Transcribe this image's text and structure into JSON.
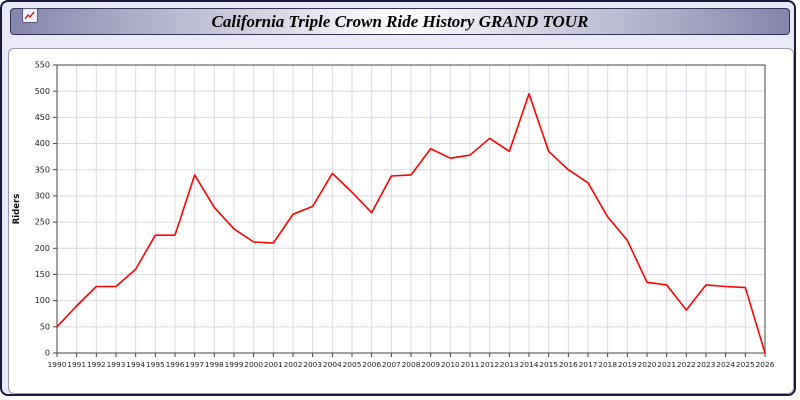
{
  "header": {
    "title": "California Triple Crown Ride History GRAND TOUR",
    "icon": "mini-chart-icon"
  },
  "chart_data": {
    "type": "line",
    "title": "California Triple Crown Ride History GRAND TOUR",
    "xlabel": "",
    "ylabel": "Riders",
    "ylim": [
      0,
      550
    ],
    "ytick_step": 50,
    "grid": true,
    "legend_position": "none",
    "line_color": "#ff0000",
    "x": [
      "1990",
      "1991",
      "1992",
      "1993",
      "1994",
      "1995",
      "1996",
      "1997",
      "1998",
      "1999",
      "2000",
      "2001",
      "2002",
      "2003",
      "2004",
      "2005",
      "2006",
      "2007",
      "2008",
      "2009",
      "2010",
      "2011",
      "2012",
      "2013",
      "2014",
      "2015",
      "2016",
      "2017",
      "2018",
      "2019",
      "2020",
      "2021",
      "2022",
      "2023",
      "2024",
      "2025",
      "2026"
    ],
    "series": [
      {
        "name": "Riders",
        "values": [
          50,
          90,
          127,
          127,
          160,
          225,
          225,
          340,
          278,
          237,
          212,
          210,
          265,
          280,
          343,
          307,
          268,
          338,
          340,
          390,
          372,
          378,
          410,
          385,
          495,
          385,
          350,
          325,
          260,
          215,
          135,
          130,
          82,
          130,
          127,
          125,
          0
        ]
      }
    ],
    "yticks": [
      0,
      50,
      100,
      150,
      200,
      250,
      300,
      350,
      400,
      450,
      500,
      550
    ]
  },
  "colors": {
    "page_background": "#e9e9f7",
    "plot_background": "#ffffff",
    "grid": "#d9d9e2",
    "axis": "#444444",
    "line": "#ff0000",
    "frame_border": "#1a1a3a"
  }
}
